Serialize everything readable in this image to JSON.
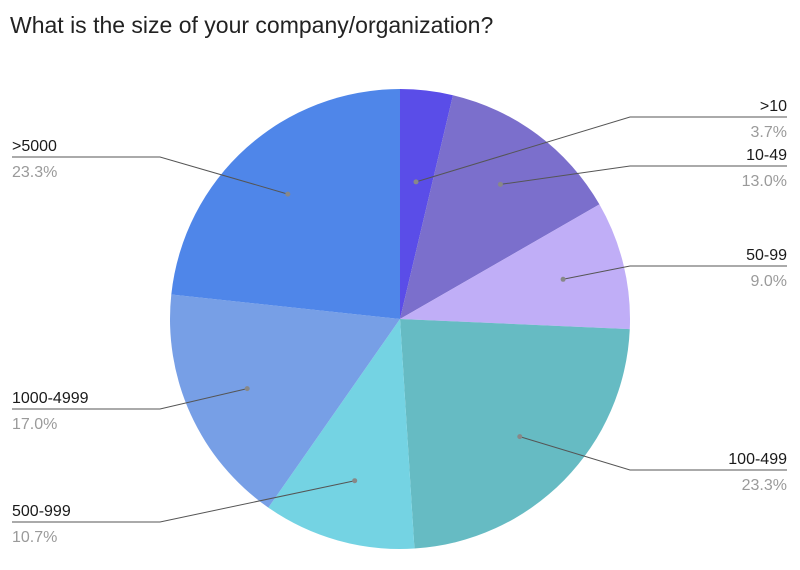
{
  "chart_data": {
    "type": "pie",
    "title": "What is the size of your company/organization?",
    "slices": [
      {
        "label": ">10",
        "value": 3.7,
        "value_label": "3.7%",
        "color": "#5a4de8"
      },
      {
        "label": "10-49",
        "value": 13.0,
        "value_label": "13.0%",
        "color": "#7b6fcc"
      },
      {
        "label": "50-99",
        "value": 9.0,
        "value_label": "9.0%",
        "color": "#c0aef7"
      },
      {
        "label": "100-499",
        "value": 23.3,
        "value_label": "23.3%",
        "color": "#66bbc3"
      },
      {
        "label": "500-999",
        "value": 10.7,
        "value_label": "10.7%",
        "color": "#74d3e3"
      },
      {
        "label": "1000-4999",
        "value": 17.0,
        "value_label": "17.0%",
        "color": "#779fe6"
      },
      {
        "label": ">5000",
        "value": 23.3,
        "value_label": "23.3%",
        "color": "#4f86e9"
      }
    ]
  }
}
